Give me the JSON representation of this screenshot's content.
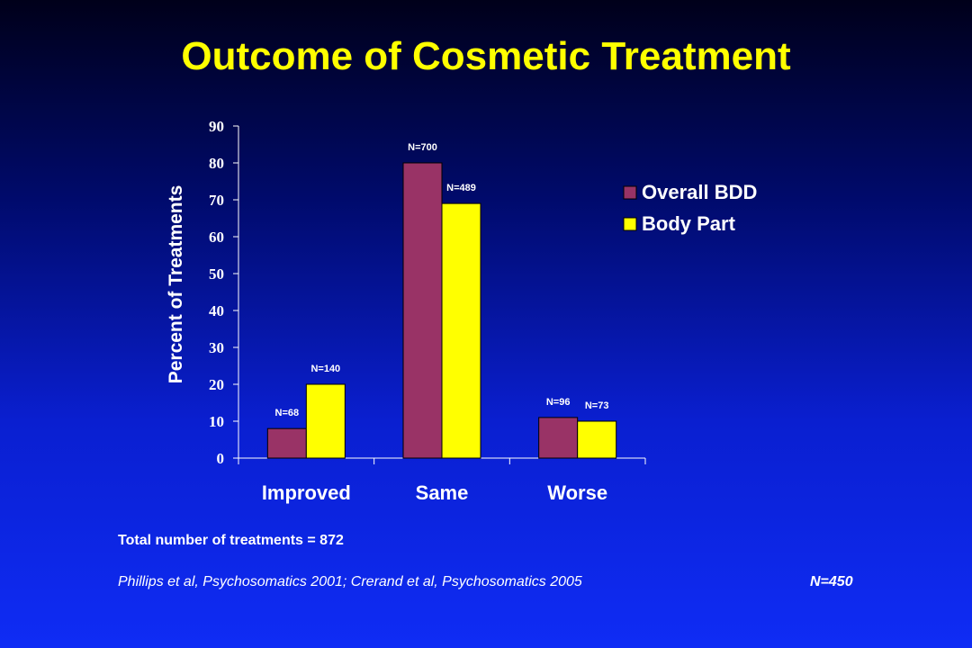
{
  "slide": {
    "title": "Outcome of Cosmetic Treatment",
    "total_treatments": "Total number of treatments = 872",
    "citation": "Phillips et al, Psychosomatics 2001; Crerand et al, Psychosomatics 2005",
    "sample_size": "N=450"
  },
  "chart_data": {
    "type": "bar",
    "title": "",
    "xlabel": "",
    "ylabel": "Percent of Treatments",
    "ylim": [
      0,
      90
    ],
    "yticks": [
      0,
      10,
      20,
      30,
      40,
      50,
      60,
      70,
      80,
      90
    ],
    "categories": [
      "Improved",
      "Same",
      "Worse"
    ],
    "series": [
      {
        "name": "Overall BDD",
        "color": "#993366",
        "values": [
          8,
          80,
          11
        ],
        "labels": [
          "N=68",
          "N=700",
          "N=96"
        ]
      },
      {
        "name": "Body Part",
        "color": "#ffff00",
        "values": [
          20,
          69,
          10
        ],
        "labels": [
          "N=140",
          "N=489",
          "N=73"
        ]
      }
    ],
    "legend": "right",
    "grid": false
  }
}
